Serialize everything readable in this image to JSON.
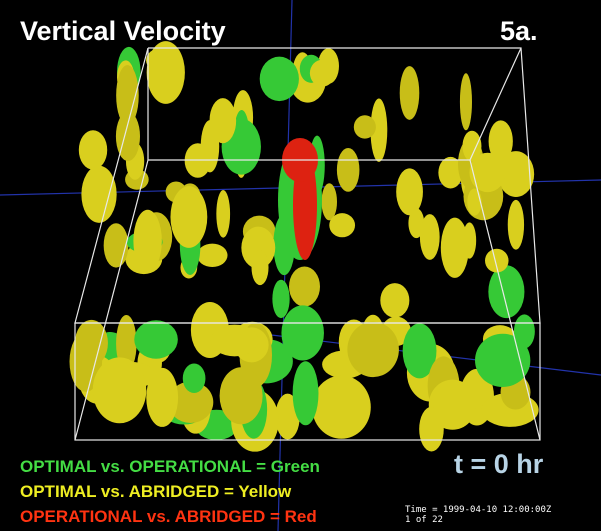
{
  "title": "Vertical Velocity",
  "panel_label": "5a.",
  "time_label": "t = 0 hr",
  "legend": [
    "OPTIMAL vs. OPERATIONAL = Green",
    "OPTIMAL vs. ABRIDGED = Yellow",
    "OPERATIONAL vs. ABRIDGED = Red"
  ],
  "timestamp": {
    "time": "Time = 1999-04-10 12:00:00Z",
    "frame": "1 of 22"
  }
}
